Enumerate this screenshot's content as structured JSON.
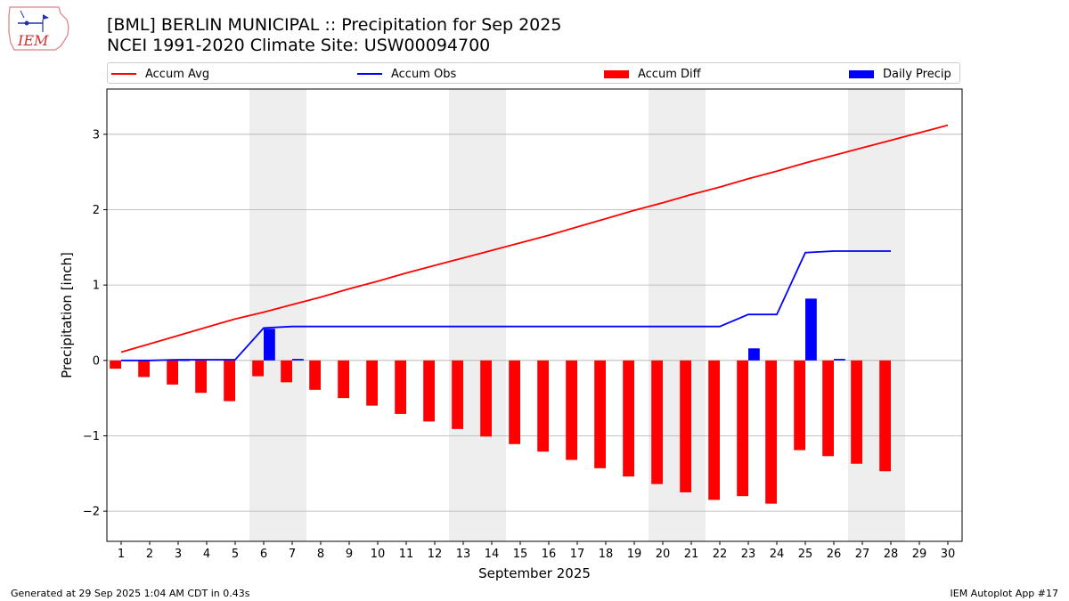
{
  "title": "[BML] BERLIN MUNICIPAL :: Precipitation for Sep 2025",
  "subtitle": "NCEI 1991-2020 Climate Site: USW00094700",
  "logo_text": "IEM",
  "footer_left": "Generated at 29 Sep 2025 1:04 AM CDT in 0.43s",
  "footer_right": "IEM Autoplot App #17",
  "colors": {
    "avg": "#ff0000",
    "obs": "#0000ff",
    "diff": "#ff0000",
    "daily": "#0000ff",
    "weekend": "#eeeeee",
    "grid": "#b0b0b0"
  },
  "chart_data": {
    "type": "bar",
    "xlabel": "September 2025",
    "ylabel": "Precipitation [inch]",
    "xlim": [
      0.5,
      30.5
    ],
    "ylim": [
      -2.4,
      3.6
    ],
    "grid": true,
    "legend_position": "top",
    "x": [
      1,
      2,
      3,
      4,
      5,
      6,
      7,
      8,
      9,
      10,
      11,
      12,
      13,
      14,
      15,
      16,
      17,
      18,
      19,
      20,
      21,
      22,
      23,
      24,
      25,
      26,
      27,
      28,
      29,
      30
    ],
    "x_tick_labels": [
      "1",
      "2",
      "3",
      "4",
      "5",
      "6",
      "7",
      "8",
      "9",
      "10",
      "11",
      "12",
      "13",
      "14",
      "15",
      "16",
      "17",
      "18",
      "19",
      "20",
      "21",
      "22",
      "23",
      "24",
      "25",
      "26",
      "27",
      "28",
      "29",
      "30"
    ],
    "y_ticks": [
      -2,
      -1,
      0,
      1,
      2,
      3
    ],
    "y_tick_labels": [
      "−2",
      "−1",
      "0",
      "1",
      "2",
      "3"
    ],
    "weekend_days": [
      6,
      7,
      13,
      14,
      20,
      21,
      27,
      28
    ],
    "series": [
      {
        "name": "Accum Avg",
        "type": "line",
        "values": [
          0.11,
          0.22,
          0.33,
          0.44,
          0.55,
          0.64,
          0.74,
          0.84,
          0.95,
          1.05,
          1.16,
          1.26,
          1.36,
          1.46,
          1.56,
          1.66,
          1.77,
          1.88,
          1.99,
          2.09,
          2.2,
          2.3,
          2.41,
          2.51,
          2.62,
          2.72,
          2.82,
          2.92,
          3.02,
          3.12
        ]
      },
      {
        "name": "Accum Obs",
        "type": "line",
        "values": [
          0.0,
          0.0,
          0.01,
          0.01,
          0.01,
          0.43,
          0.45,
          0.45,
          0.45,
          0.45,
          0.45,
          0.45,
          0.45,
          0.45,
          0.45,
          0.45,
          0.45,
          0.45,
          0.45,
          0.45,
          0.45,
          0.45,
          0.61,
          0.61,
          1.43,
          1.45,
          1.45,
          1.45,
          null,
          null
        ]
      },
      {
        "name": "Accum Diff",
        "type": "bar",
        "values": [
          -0.11,
          -0.22,
          -0.32,
          -0.43,
          -0.54,
          -0.21,
          -0.29,
          -0.39,
          -0.5,
          -0.6,
          -0.71,
          -0.81,
          -0.91,
          -1.01,
          -1.11,
          -1.21,
          -1.32,
          -1.43,
          -1.54,
          -1.64,
          -1.75,
          -1.85,
          -1.8,
          -1.9,
          -1.19,
          -1.27,
          -1.37,
          -1.47,
          null,
          null
        ]
      },
      {
        "name": "Daily Precip",
        "type": "bar",
        "values": [
          0.0,
          0.0,
          0.01,
          0.0,
          0.0,
          0.42,
          0.02,
          0.0,
          0.0,
          0.0,
          0.0,
          0.0,
          0.0,
          0.0,
          0.0,
          0.0,
          0.0,
          0.0,
          0.0,
          0.0,
          0.0,
          0.0,
          0.16,
          0.0,
          0.82,
          0.02,
          0.0,
          0.0,
          null,
          null
        ]
      }
    ]
  }
}
